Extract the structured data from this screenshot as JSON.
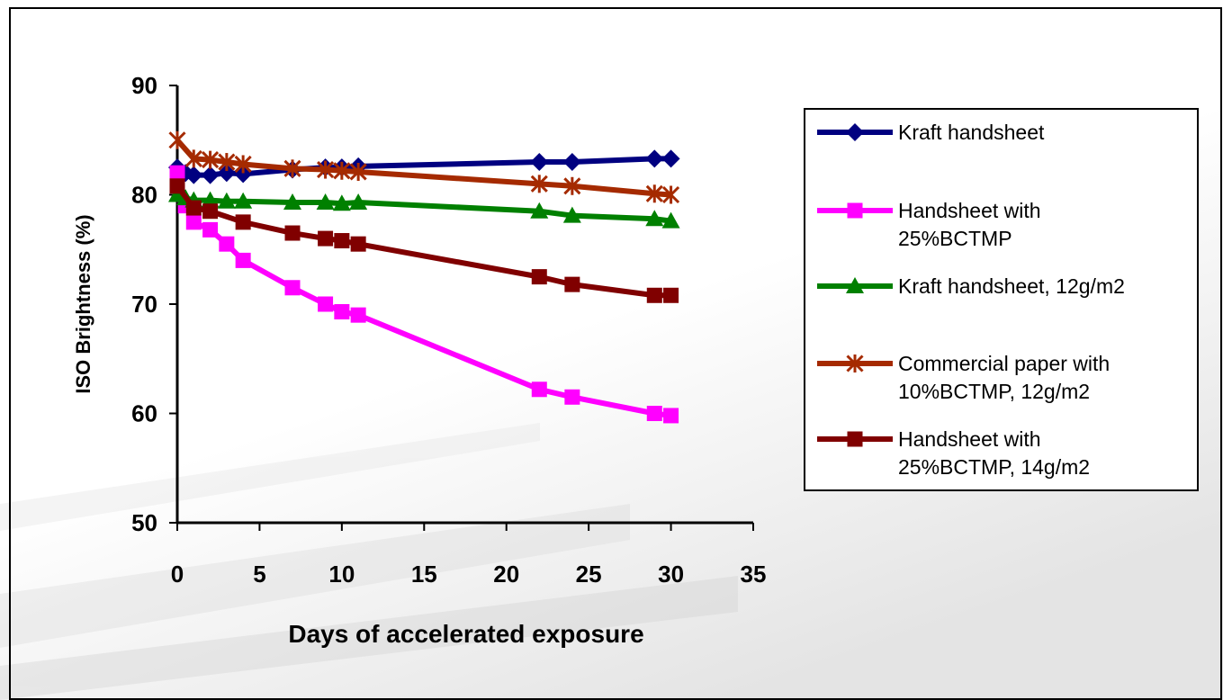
{
  "chart_data": {
    "type": "line",
    "title": "",
    "xlabel": "Days of accelerated exposure",
    "ylabel": "ISO Brightness (%)",
    "xlim": [
      0,
      35
    ],
    "ylim": [
      50,
      90
    ],
    "x_ticks": [
      0,
      5,
      10,
      15,
      20,
      25,
      30,
      35
    ],
    "y_ticks": [
      50,
      60,
      70,
      80,
      90
    ],
    "grid": false,
    "legend_position": "right",
    "series": [
      {
        "name": "Kraft handsheet",
        "color": "#000080",
        "marker": "diamond",
        "x": [
          0,
          0.5,
          1,
          2,
          3,
          4,
          7,
          9,
          10,
          11,
          22,
          24,
          29,
          30
        ],
        "y": [
          82.5,
          82.0,
          81.8,
          81.8,
          82.0,
          81.9,
          82.3,
          82.5,
          82.5,
          82.6,
          83.0,
          83.0,
          83.3,
          83.3
        ],
        "label_lines": [
          "Kraft handsheet"
        ]
      },
      {
        "name": "Handsheet with 25%BCTMP",
        "color": "#FF00FF",
        "marker": "square",
        "x": [
          0,
          0.5,
          1,
          2,
          3,
          4,
          7,
          9,
          10,
          11,
          22,
          24,
          29,
          30
        ],
        "y": [
          82.0,
          79.0,
          77.5,
          76.8,
          75.5,
          74.0,
          71.5,
          70.0,
          69.3,
          69.0,
          62.2,
          61.5,
          60.0,
          59.8
        ],
        "label_lines": [
          "Handsheet with",
          "25%BCTMP"
        ]
      },
      {
        "name": "Kraft handsheet, 12g/m2",
        "color": "#008000",
        "marker": "triangle",
        "x": [
          0,
          0.5,
          1,
          2,
          3,
          4,
          7,
          9,
          10,
          11,
          22,
          24,
          29,
          30
        ],
        "y": [
          80.0,
          79.7,
          79.5,
          79.5,
          79.4,
          79.4,
          79.3,
          79.3,
          79.2,
          79.3,
          78.5,
          78.1,
          77.8,
          77.6
        ],
        "label_lines": [
          "Kraft handsheet, 12g/m2"
        ]
      },
      {
        "name": "Commercial paper with 10%BCTMP, 12g/m2",
        "color": "#A52A00",
        "marker": "star",
        "x": [
          0,
          1,
          2,
          3,
          4,
          7,
          9,
          10,
          11,
          22,
          24,
          29,
          30
        ],
        "y": [
          85.0,
          83.3,
          83.2,
          83.0,
          82.8,
          82.4,
          82.3,
          82.2,
          82.1,
          81.0,
          80.8,
          80.1,
          80.0
        ],
        "label_lines": [
          "Commercial paper with",
          "10%BCTMP, 12g/m2"
        ]
      },
      {
        "name": "Handsheet with 25%BCTMP, 14g/m2",
        "color": "#800000",
        "marker": "square",
        "x": [
          0,
          1,
          2,
          4,
          7,
          9,
          10,
          11,
          22,
          24,
          29,
          30
        ],
        "y": [
          80.8,
          78.8,
          78.5,
          77.5,
          76.5,
          76.0,
          75.8,
          75.5,
          72.5,
          71.8,
          70.8,
          70.8
        ],
        "label_lines": [
          "Handsheet with",
          "25%BCTMP, 14g/m2"
        ]
      }
    ]
  }
}
